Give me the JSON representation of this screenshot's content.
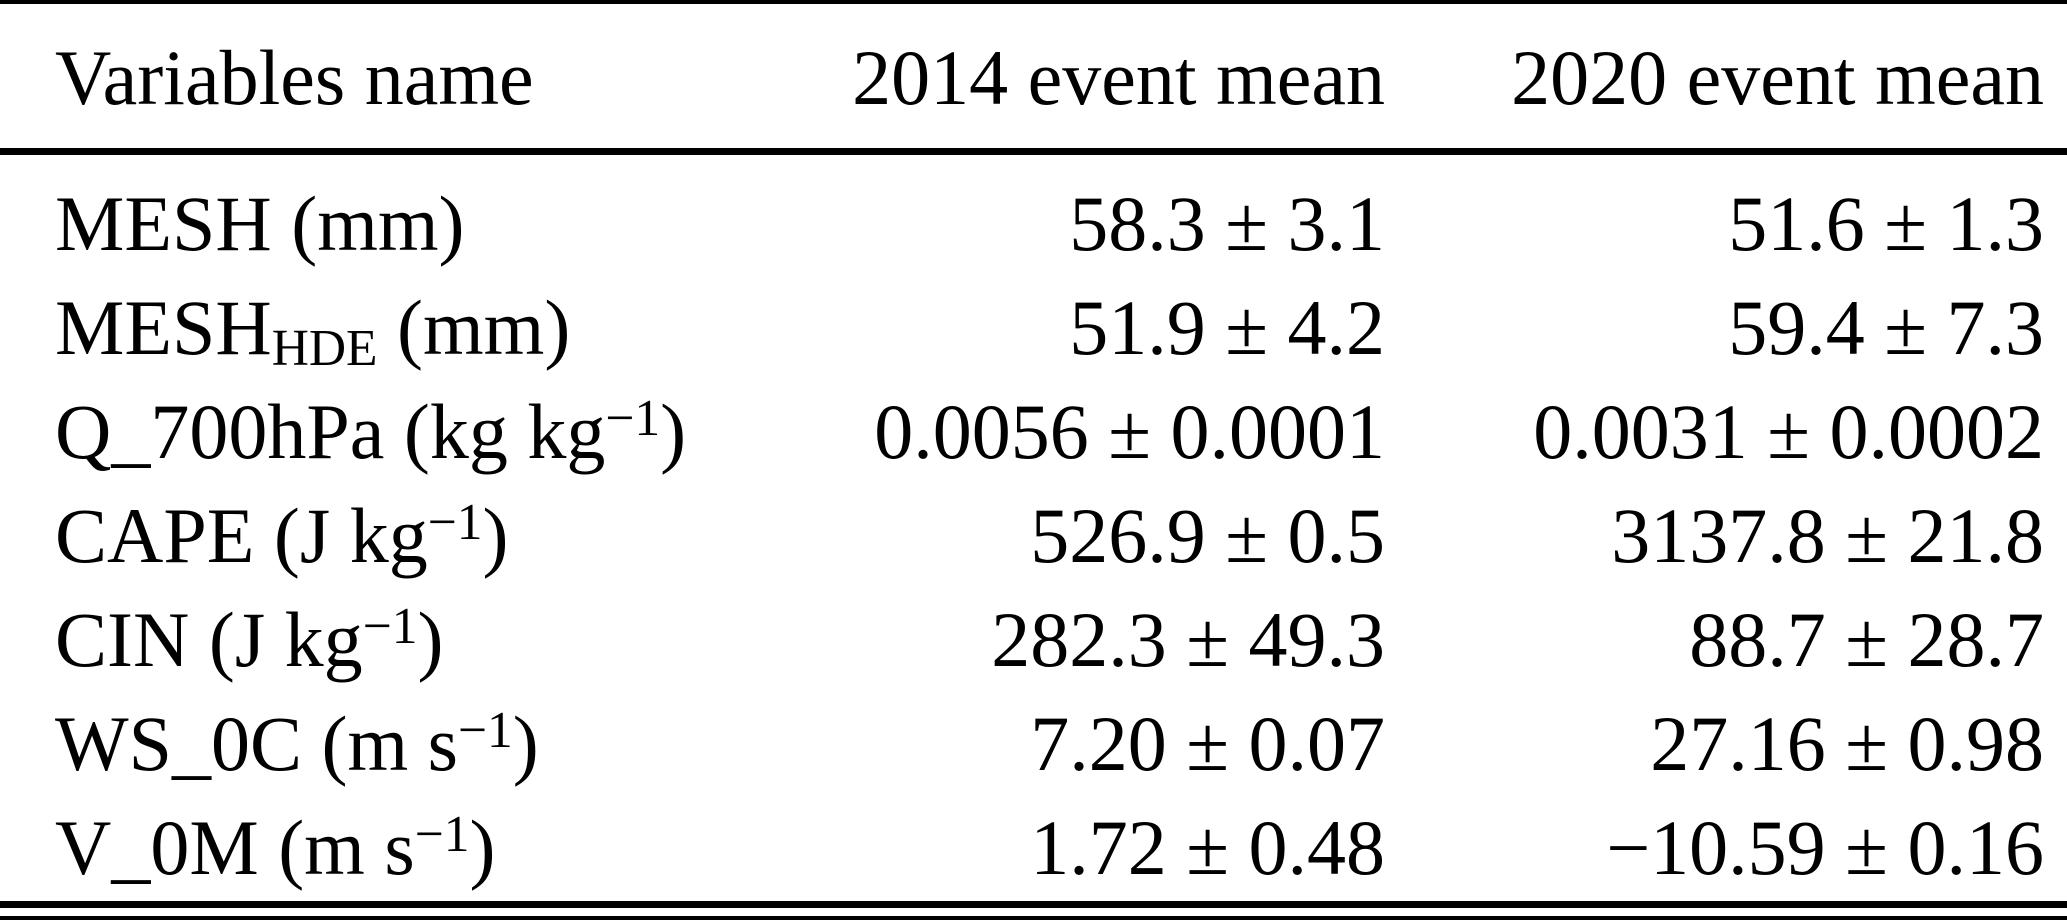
{
  "table": {
    "header": {
      "variables": "Variables name",
      "mean2014": "2014 event mean",
      "mean2020": "2020 event mean"
    },
    "rows": [
      {
        "base": "MESH",
        "sub": "",
        "unit_pre": " (mm",
        "sup": "",
        "unit_post": ")",
        "mean2014": "58.3 ± 3.1",
        "mean2020": "51.6 ± 1.3"
      },
      {
        "base": "MESH",
        "sub": "HDE",
        "unit_pre": " (mm",
        "sup": "",
        "unit_post": ")",
        "mean2014": "51.9 ± 4.2",
        "mean2020": "59.4 ± 7.3"
      },
      {
        "base": "Q_700hPa",
        "sub": "",
        "unit_pre": " (kg kg",
        "sup": "−1",
        "unit_post": ")",
        "mean2014": "0.0056 ± 0.0001",
        "mean2020": "0.0031 ± 0.0002"
      },
      {
        "base": "CAPE",
        "sub": "",
        "unit_pre": " (J kg",
        "sup": "−1",
        "unit_post": ")",
        "mean2014": "526.9 ± 0.5",
        "mean2020": "3137.8 ± 21.8"
      },
      {
        "base": "CIN",
        "sub": "",
        "unit_pre": " (J kg",
        "sup": "−1",
        "unit_post": ")",
        "mean2014": "282.3 ± 49.3",
        "mean2020": "88.7 ± 28.7"
      },
      {
        "base": "WS_0C",
        "sub": "",
        "unit_pre": " (m s",
        "sup": "−1",
        "unit_post": ")",
        "mean2014": "7.20 ± 0.07",
        "mean2020": "27.16 ± 0.98"
      },
      {
        "base": "V_0M",
        "sub": "",
        "unit_pre": " (m s",
        "sup": "−1",
        "unit_post": ")",
        "mean2014": "1.72 ± 0.48",
        "mean2020": "−10.59 ± 0.16"
      }
    ]
  }
}
